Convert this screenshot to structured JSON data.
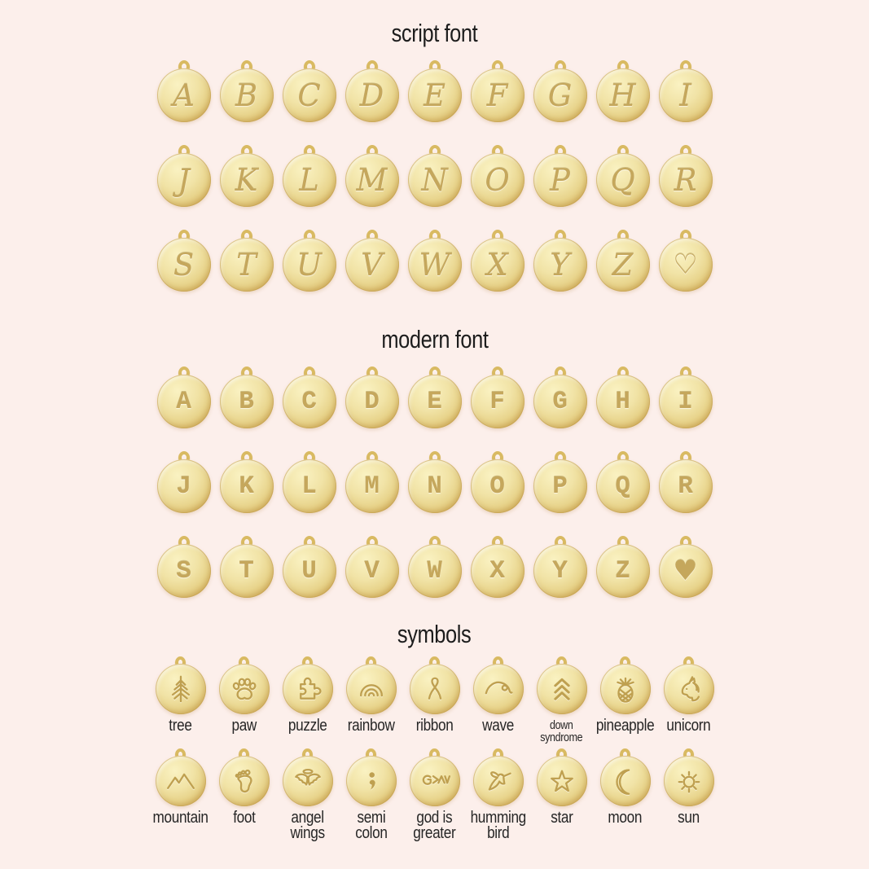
{
  "colors": {
    "background": "#fcefeb",
    "disc_gold_highlight": "#faf2c2",
    "disc_gold_mid": "#e8d48c",
    "disc_gold_edge": "#d2ab52",
    "engraving": "#bfa050",
    "heading_text": "#1d1d1d",
    "label_text": "#262626"
  },
  "sections": {
    "script": {
      "title": "script font",
      "rows": [
        [
          "A",
          "B",
          "C",
          "D",
          "E",
          "F",
          "G",
          "H",
          "I"
        ],
        [
          "J",
          "K",
          "L",
          "M",
          "N",
          "O",
          "P",
          "Q",
          "R"
        ],
        [
          "S",
          "T",
          "U",
          "V",
          "W",
          "X",
          "Y",
          "Z",
          "♡"
        ]
      ]
    },
    "modern": {
      "title": "modern font",
      "rows": [
        [
          "A",
          "B",
          "C",
          "D",
          "E",
          "F",
          "G",
          "H",
          "I"
        ],
        [
          "J",
          "K",
          "L",
          "M",
          "N",
          "O",
          "P",
          "Q",
          "R"
        ],
        [
          "S",
          "T",
          "U",
          "V",
          "W",
          "X",
          "Y",
          "Z",
          "♥"
        ]
      ]
    },
    "symbols": {
      "title": "symbols",
      "rows": [
        [
          {
            "icon": "tree-icon",
            "label": [
              "tree"
            ]
          },
          {
            "icon": "paw-icon",
            "label": [
              "paw"
            ]
          },
          {
            "icon": "puzzle-icon",
            "label": [
              "puzzle"
            ]
          },
          {
            "icon": "rainbow-icon",
            "label": [
              "rainbow"
            ]
          },
          {
            "icon": "ribbon-icon",
            "label": [
              "ribbon"
            ]
          },
          {
            "icon": "wave-icon",
            "label": [
              "wave"
            ]
          },
          {
            "icon": "down-syndrome-icon",
            "label": [
              "down",
              "syndrome"
            ],
            "small_label": true
          },
          {
            "icon": "pineapple-icon",
            "label": [
              "pineapple"
            ]
          },
          {
            "icon": "unicorn-icon",
            "label": [
              "unicorn"
            ]
          }
        ],
        [
          {
            "icon": "mountain-icon",
            "label": [
              "mountain"
            ]
          },
          {
            "icon": "foot-icon",
            "label": [
              "foot"
            ]
          },
          {
            "icon": "angel-wings-icon",
            "label": [
              "angel",
              "wings"
            ]
          },
          {
            "icon": "semi-colon-icon",
            "label": [
              "semi",
              "colon"
            ]
          },
          {
            "icon": "god-is-greater-icon",
            "label": [
              "god is",
              "greater"
            ]
          },
          {
            "icon": "humming-bird-icon",
            "label": [
              "humming",
              "bird"
            ]
          },
          {
            "icon": "star-icon",
            "label": [
              "star"
            ]
          },
          {
            "icon": "moon-icon",
            "label": [
              "moon"
            ]
          },
          {
            "icon": "sun-icon",
            "label": [
              "sun"
            ]
          }
        ]
      ]
    }
  }
}
